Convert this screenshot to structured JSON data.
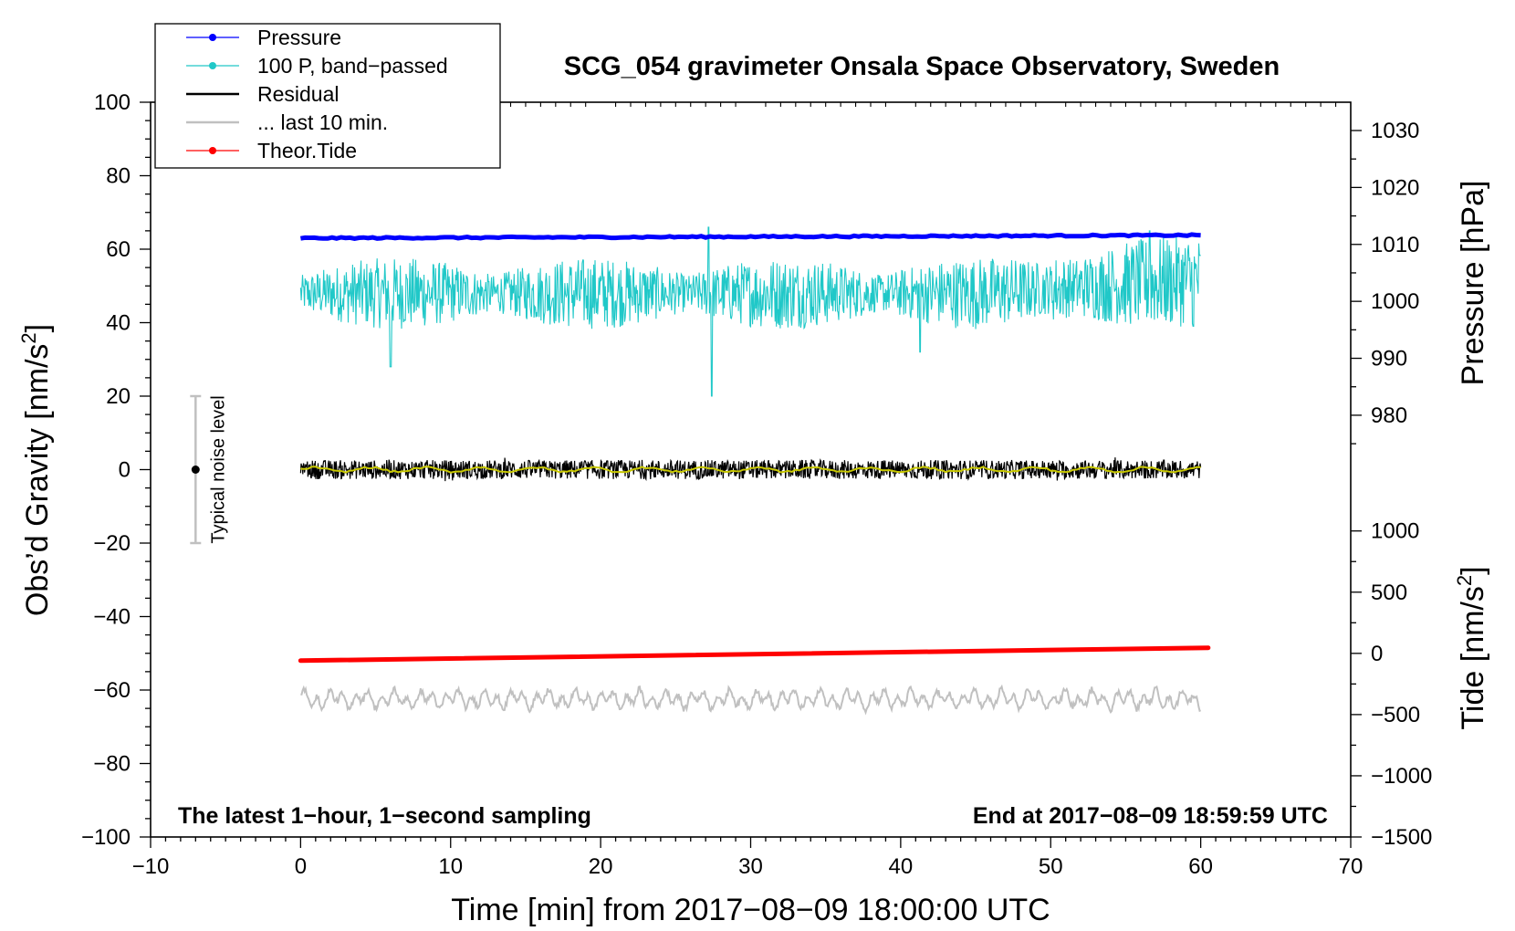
{
  "chart_data": {
    "type": "line",
    "title": "SCG_054 gravimeter Onsala Space Observatory, Sweden",
    "xlabel": "Time [min] from 2017−08−09 18:00:00 UTC",
    "ylabel_left": "Obs’d Gravity [nm/s",
    "ylabel_left_sup": "2",
    "ylabel_left_tail": "]",
    "ylabel_right_top": "Pressure [hPa]",
    "ylabel_right_bottom": "Tide [nm/s",
    "ylabel_right_bottom_sup": "2",
    "ylabel_right_bottom_tail": "]",
    "xlim": [
      -10,
      70
    ],
    "ylim": [
      -100,
      100
    ],
    "x_ticks": [
      {
        "v": -10,
        "label": "−10"
      },
      {
        "v": 0,
        "label": "0"
      },
      {
        "v": 10,
        "label": "10"
      },
      {
        "v": 20,
        "label": "20"
      },
      {
        "v": 30,
        "label": "30"
      },
      {
        "v": 40,
        "label": "40"
      },
      {
        "v": 50,
        "label": "50"
      },
      {
        "v": 60,
        "label": "60"
      },
      {
        "v": 70,
        "label": "70"
      }
    ],
    "y_ticks": [
      {
        "v": 100,
        "label": "100"
      },
      {
        "v": 80,
        "label": "80"
      },
      {
        "v": 60,
        "label": "60"
      },
      {
        "v": 40,
        "label": "40"
      },
      {
        "v": 20,
        "label": "20"
      },
      {
        "v": 0,
        "label": "0"
      },
      {
        "v": -20,
        "label": "−20"
      },
      {
        "v": -40,
        "label": "−40"
      },
      {
        "v": -60,
        "label": "−60"
      },
      {
        "v": -80,
        "label": "−80"
      },
      {
        "v": -100,
        "label": "−100"
      }
    ],
    "pressure_axis": {
      "ticks": [
        {
          "v": 1030,
          "label": "1030"
        },
        {
          "v": 1020,
          "label": "1020"
        },
        {
          "v": 1010,
          "label": "1010"
        },
        {
          "v": 1000,
          "label": "1000"
        },
        {
          "v": 990,
          "label": "990"
        },
        {
          "v": 980,
          "label": "980"
        }
      ],
      "map": {
        "p1": 1030,
        "g1": 92.3,
        "p2": 980,
        "g2": 14.8
      }
    },
    "tide_axis": {
      "ticks": [
        {
          "v": 1000,
          "label": "1000"
        },
        {
          "v": 500,
          "label": "500"
        },
        {
          "v": 0,
          "label": "0"
        },
        {
          "v": -500,
          "label": "−500"
        },
        {
          "v": -1000,
          "label": "−1000"
        },
        {
          "v": -1500,
          "label": "−1500"
        }
      ],
      "map": {
        "t1": 1000,
        "g1": -16.7,
        "t2": -1500,
        "g2": -100
      }
    },
    "series": [
      {
        "name": "Pressure",
        "color": "#0000ff",
        "kind": "thick",
        "x_range": [
          0,
          60
        ],
        "approx_value_hPa": 1011,
        "start_nm_s2": 63.0,
        "end_nm_s2": 63.8
      },
      {
        "name": "100 P, band−passed",
        "color": "#20c8c8",
        "kind": "noise",
        "x_range": [
          0,
          60
        ],
        "center_nm_s2": 48,
        "range_nm_s2": [
          20,
          66
        ]
      },
      {
        "name": "Residual",
        "color": "#000000",
        "kind": "noise",
        "x_range": [
          0,
          60
        ],
        "center_nm_s2": 0,
        "range_nm_s2": [
          -4,
          4
        ]
      },
      {
        "name": "Residual smoothed",
        "color": "#c8c800",
        "kind": "smooth",
        "x_range": [
          0,
          60
        ],
        "center_nm_s2": 0
      },
      {
        "name": "... last 10 min.",
        "color": "#c0c0c0",
        "kind": "wave",
        "x_range": [
          0,
          60
        ],
        "center_nm_s2": -62.5,
        "range_nm_s2": [
          -66,
          -57
        ]
      },
      {
        "name": "Theor.Tide",
        "color": "#ff0000",
        "kind": "thick",
        "x_range": [
          0,
          60.5
        ],
        "start_nm_s2": -52,
        "end_nm_s2": -48.5
      }
    ],
    "legend": [
      {
        "label": "Pressure",
        "color": "#0000ff",
        "marker": true
      },
      {
        "label": "100 P, band−passed",
        "color": "#20c8c8",
        "marker": true
      },
      {
        "label": "Residual",
        "color": "#000000",
        "marker": false
      },
      {
        "label": "... last 10 min.",
        "color": "#c0c0c0",
        "marker": false
      },
      {
        "label": "Theor.Tide",
        "color": "#ff0000",
        "marker": true
      }
    ],
    "legend_position": "top-left",
    "noise_bar": {
      "label": "Typical noise level",
      "x": -7,
      "center": 0,
      "half_range": 20
    },
    "footer_left": "The latest 1−hour, 1−second sampling",
    "footer_right": "End at 2017−08−09 18:59:59 UTC"
  }
}
